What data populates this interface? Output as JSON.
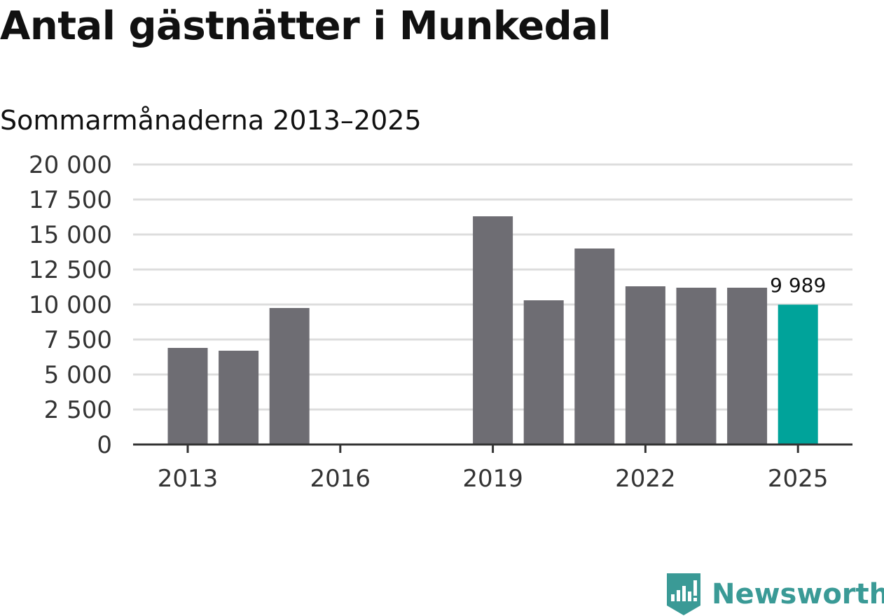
{
  "chart_data": {
    "type": "bar",
    "title": "Antal gästnätter i Munkedal",
    "subtitle": "Sommarmånaderna 2013–2025",
    "xlabel": "",
    "ylabel": "",
    "x": [
      2013,
      2014,
      2015,
      2016,
      2017,
      2018,
      2019,
      2020,
      2021,
      2022,
      2023,
      2024,
      2025
    ],
    "values": [
      6900,
      6700,
      9750,
      null,
      null,
      null,
      16300,
      10300,
      14000,
      11300,
      11200,
      11200,
      9989
    ],
    "ylim": [
      0,
      20000
    ],
    "yticks": [
      "0",
      "2 500",
      "5 000",
      "7 500",
      "10 000",
      "12 500",
      "15 000",
      "17 500",
      "20 000"
    ],
    "xticks": [
      "2013",
      "2016",
      "2019",
      "2022",
      "2025"
    ],
    "highlight_label": "9 989",
    "grid": true,
    "colors": {
      "bar": "#6e6d73",
      "highlight": "#00a39a",
      "grid": "#dddddd",
      "axis": "#333333"
    }
  },
  "brand": {
    "name": "Newsworthy",
    "icon": "newsworthy-logo-icon",
    "color": "#3a9a96"
  }
}
